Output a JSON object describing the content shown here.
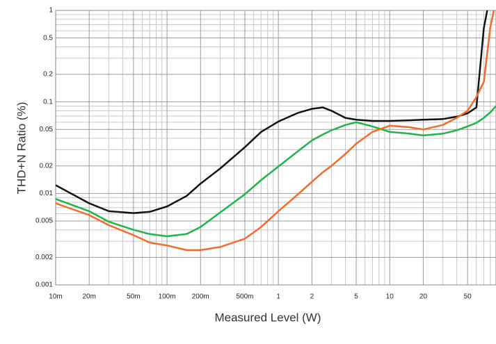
{
  "chart_data": {
    "type": "line",
    "xlabel": "Measured Level (W)",
    "ylabel": "THD+N Ratio (%)",
    "xscale": "log",
    "yscale": "log",
    "grid": true,
    "x": [
      0.01,
      0.02,
      0.03,
      0.05,
      0.07,
      0.1,
      0.15,
      0.2,
      0.3,
      0.5,
      0.7,
      1,
      1.5,
      2,
      2.5,
      3,
      4,
      5,
      7,
      10,
      15,
      20,
      30,
      40,
      50,
      60,
      70,
      80,
      90
    ],
    "series": [
      {
        "name": "black",
        "color": "#111111",
        "values": [
          0.0123,
          0.0078,
          0.0064,
          0.0061,
          0.0063,
          0.0072,
          0.0094,
          0.0128,
          0.0187,
          0.032,
          0.047,
          0.061,
          0.076,
          0.084,
          0.087,
          0.08,
          0.067,
          0.064,
          0.062,
          0.062,
          0.063,
          0.064,
          0.065,
          0.069,
          0.075,
          0.087,
          0.64,
          1.5,
          null
        ]
      },
      {
        "name": "green",
        "color": "#22b24c",
        "values": [
          0.0087,
          0.0064,
          0.0049,
          0.004,
          0.0036,
          0.0034,
          0.0036,
          0.0043,
          0.0062,
          0.0098,
          0.014,
          0.0197,
          0.029,
          0.038,
          0.044,
          0.049,
          0.056,
          0.06,
          0.054,
          0.047,
          0.045,
          0.043,
          0.045,
          0.049,
          0.054,
          0.059,
          0.067,
          0.077,
          0.09
        ]
      },
      {
        "name": "orange",
        "color": "#f26b2a",
        "values": [
          0.0078,
          0.0058,
          0.0045,
          0.0035,
          0.0029,
          0.0027,
          0.0024,
          0.0024,
          0.0026,
          0.0032,
          0.0043,
          0.0064,
          0.0098,
          0.0134,
          0.017,
          0.02,
          0.027,
          0.035,
          0.047,
          0.055,
          0.053,
          0.05,
          0.056,
          0.067,
          0.08,
          0.113,
          0.166,
          0.65,
          1.3
        ]
      }
    ],
    "xlim": [
      0.01,
      90
    ],
    "ylim": [
      0.001,
      1
    ],
    "xticks": [
      {
        "value": 0.01,
        "label": "10m"
      },
      {
        "value": 0.02,
        "label": "20m"
      },
      {
        "value": 0.05,
        "label": "50m"
      },
      {
        "value": 0.1,
        "label": "100m"
      },
      {
        "value": 0.2,
        "label": "200m"
      },
      {
        "value": 0.5,
        "label": "500m"
      },
      1,
      2,
      5,
      10,
      20,
      50
    ],
    "yticks": [
      1,
      0.5,
      0.2,
      0.1,
      0.05,
      0.02,
      0.01,
      0.005,
      0.002,
      0.001
    ],
    "xminorticks": [
      0.03,
      0.04,
      0.06,
      0.07,
      0.08,
      0.09,
      0.3,
      0.4,
      0.6,
      0.7,
      0.8,
      0.9,
      3,
      4,
      6,
      7,
      8,
      9,
      30,
      40,
      60,
      70,
      80
    ],
    "yminorticks": [
      0.003,
      0.004,
      0.006,
      0.007,
      0.008,
      0.009,
      0.03,
      0.04,
      0.06,
      0.07,
      0.08,
      0.09,
      0.3,
      0.4,
      0.6,
      0.7,
      0.8,
      0.9
    ]
  }
}
